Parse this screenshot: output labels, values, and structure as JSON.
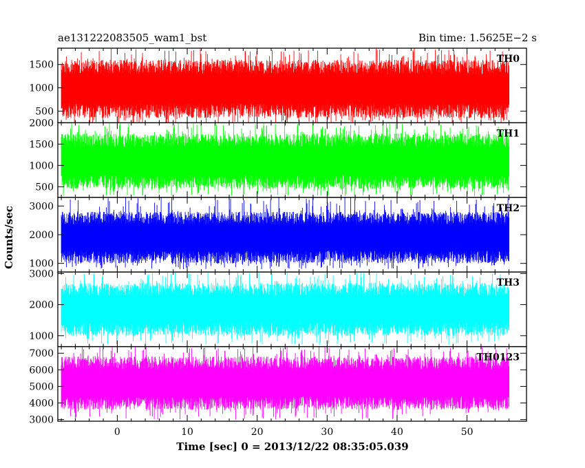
{
  "header": {
    "left_title": "ae131222083505_wam1_bst",
    "right_title": "Bin time: 1.5625E−2 s"
  },
  "chart_data": {
    "type": "line",
    "xlabel": "Time [sec] 0 = 2013/12/22 08:35:05.039",
    "ylabel": "Counts/sec",
    "xlim": [
      -8.5,
      58.5
    ],
    "data_x_range": [
      -8.0,
      56.0
    ],
    "xticks": [
      0,
      10,
      20,
      30,
      40,
      50
    ],
    "xtick_labels": [
      "0",
      "10",
      "20",
      "30",
      "40",
      "50"
    ],
    "panels": [
      {
        "name": "TH0",
        "color": "#ff0000",
        "ylim": [
          250,
          1850
        ],
        "yticks": [
          500,
          1000,
          1500
        ],
        "ytick_labels": [
          "500",
          "1000",
          "1500"
        ],
        "typical_range": [
          350,
          1600
        ],
        "extreme_range": [
          200,
          1850
        ]
      },
      {
        "name": "TH1",
        "color": "#00ff00",
        "ylim": [
          250,
          2000
        ],
        "yticks": [
          500,
          1000,
          1500,
          2000
        ],
        "ytick_labels": [
          "500",
          "1000",
          "1500",
          "2000"
        ],
        "typical_range": [
          450,
          1750
        ],
        "extreme_range": [
          280,
          2000
        ]
      },
      {
        "name": "TH2",
        "color": "#0000ff",
        "ylim": [
          700,
          3300
        ],
        "yticks": [
          1000,
          2000,
          3000
        ],
        "ytick_labels": [
          "1000",
          "2000",
          "3000"
        ],
        "typical_range": [
          1000,
          2800
        ],
        "extreme_range": [
          800,
          3300
        ]
      },
      {
        "name": "TH3",
        "color": "#00ffff",
        "ylim": [
          650,
          3050
        ],
        "yticks": [
          1000,
          2000,
          3000
        ],
        "ytick_labels": [
          "1000",
          "2000",
          "3000"
        ],
        "typical_range": [
          1000,
          2700
        ],
        "extreme_range": [
          700,
          3050
        ]
      },
      {
        "name": "TH0123",
        "color": "#ff00ff",
        "ylim": [
          2900,
          7400
        ],
        "yticks": [
          3000,
          4000,
          5000,
          6000,
          7000
        ],
        "ytick_labels": [
          "3000",
          "4000",
          "5000",
          "6000",
          "7000"
        ],
        "typical_range": [
          3600,
          6800
        ],
        "extreme_range": [
          3000,
          7400
        ]
      }
    ]
  }
}
